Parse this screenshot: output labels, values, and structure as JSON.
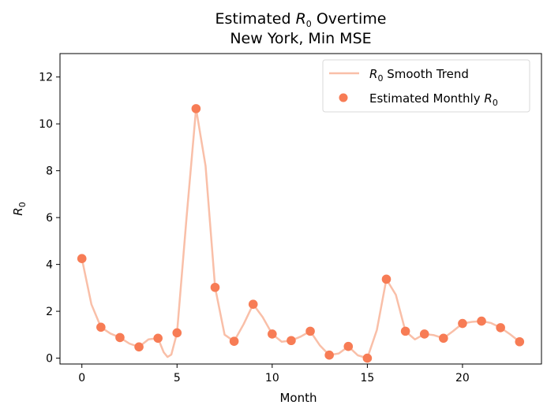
{
  "chart_data": {
    "type": "scatter",
    "title": {
      "line1_prefix": "Estimated ",
      "line1_symbol": "R",
      "line1_subscript": "0",
      "line1_suffix": " Overtime",
      "line2": "New York, Min MSE"
    },
    "xlabel": "Month",
    "ylabel": {
      "symbol": "R",
      "subscript": "0"
    },
    "xlim": [
      -1.15,
      24.15
    ],
    "ylim": [
      -0.25,
      13.0
    ],
    "xticks": [
      0,
      5,
      10,
      15,
      20
    ],
    "yticks": [
      0,
      2,
      4,
      6,
      8,
      10,
      12
    ],
    "grid": false,
    "legend": {
      "placement": "top-right",
      "entries": [
        {
          "kind": "line",
          "symbol": "R",
          "subscript": "0",
          "text_suffix": " Smooth Trend",
          "text_prefix": "",
          "color": "#f9bfa8"
        },
        {
          "kind": "marker",
          "symbol": "R",
          "subscript": "0",
          "text_prefix": "Estimated Monthly ",
          "text_suffix": "",
          "color": "#f77c55"
        }
      ]
    },
    "series": [
      {
        "kind": "points",
        "color": "#f77c55",
        "x": [
          0,
          1,
          2,
          3,
          4,
          5,
          6,
          7,
          8,
          9,
          10,
          11,
          12,
          13,
          14,
          15,
          16,
          17,
          18,
          19,
          20,
          21,
          22,
          23
        ],
        "y": [
          4.25,
          1.32,
          0.88,
          0.48,
          0.85,
          1.08,
          10.65,
          3.02,
          0.72,
          2.3,
          1.03,
          0.75,
          1.15,
          0.13,
          0.5,
          0.0,
          3.37,
          1.15,
          1.03,
          0.85,
          1.48,
          1.58,
          1.3,
          0.7
        ]
      },
      {
        "kind": "smooth",
        "color": "#f9bfa8",
        "x": [
          0,
          0.5,
          1,
          1.5,
          2,
          2.5,
          3,
          3.5,
          4,
          4.3,
          4.5,
          4.7,
          5,
          5.5,
          6,
          6.5,
          7,
          7.5,
          8,
          8.5,
          9,
          9.5,
          10,
          10.5,
          11,
          11.5,
          12,
          12.5,
          13,
          13.5,
          14,
          14.5,
          15,
          15.5,
          16,
          16.5,
          17,
          17.5,
          18,
          18.5,
          19,
          19.5,
          20,
          20.5,
          21,
          21.5,
          22,
          22.5,
          23
        ],
        "y": [
          4.25,
          2.3,
          1.32,
          1.05,
          0.88,
          0.62,
          0.48,
          0.8,
          0.85,
          0.25,
          0.05,
          0.15,
          1.08,
          6.0,
          10.65,
          8.2,
          3.02,
          1.0,
          0.72,
          1.45,
          2.3,
          1.75,
          1.03,
          0.7,
          0.75,
          0.92,
          1.15,
          0.55,
          0.13,
          0.2,
          0.5,
          0.12,
          0.0,
          1.2,
          3.37,
          2.7,
          1.15,
          0.8,
          1.03,
          0.98,
          0.85,
          1.15,
          1.48,
          1.55,
          1.58,
          1.5,
          1.3,
          1.02,
          0.7
        ]
      }
    ]
  }
}
